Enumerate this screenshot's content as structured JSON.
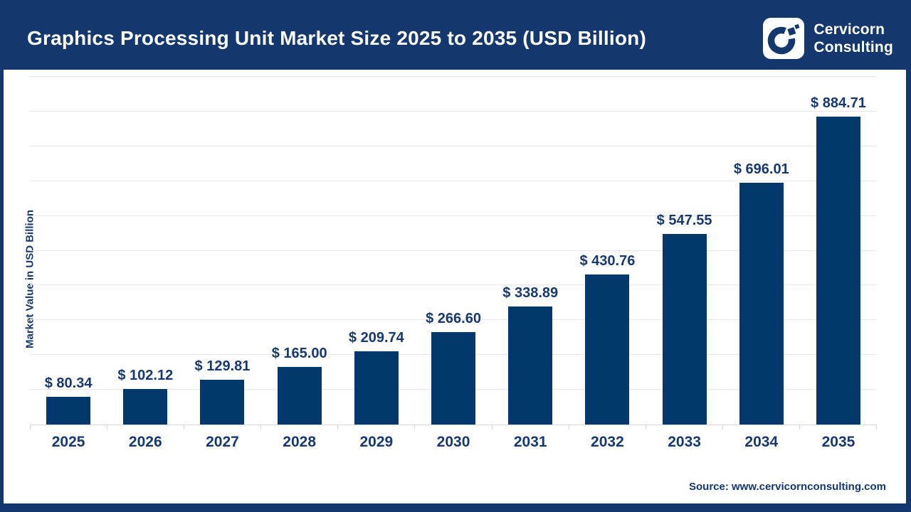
{
  "header": {
    "title": "Graphics Processing Unit Market Size 2025 to 2035 (USD Billion)",
    "brand_line1": "Cervicorn",
    "brand_line2": "Consulting"
  },
  "chart_data": {
    "type": "bar",
    "title": "Graphics Processing Unit Market Size 2025 to 2035 (USD Billion)",
    "categories": [
      "2025",
      "2026",
      "2027",
      "2028",
      "2029",
      "2030",
      "2031",
      "2032",
      "2033",
      "2034",
      "2035"
    ],
    "values": [
      80.34,
      102.12,
      129.81,
      165.0,
      209.74,
      266.6,
      338.89,
      430.76,
      547.55,
      696.01,
      884.71
    ],
    "value_labels": [
      "$ 80.34",
      "$ 102.12",
      "$ 129.81",
      "$ 165.00",
      "$ 209.74",
      "$ 266.60",
      "$ 338.89",
      "$ 430.76",
      "$ 547.55",
      "$ 696.01",
      "$ 884.71"
    ],
    "xlabel": "",
    "ylabel": "Market Value in USD Billion",
    "ylim": [
      0,
      1000
    ],
    "gridline_step": 100,
    "grid": true,
    "legend": false,
    "bar_color": "#03386C"
  },
  "footer": {
    "source": "Source: www.cervicornconsulting.com"
  },
  "colors": {
    "frame": "#14386E",
    "bar": "#03386C",
    "label_text": "#17396E",
    "gridline": "#E7E7E7",
    "axis": "#D8D8D8",
    "canvas": "#FFFFFF",
    "title_text": "#FFFFFF"
  }
}
